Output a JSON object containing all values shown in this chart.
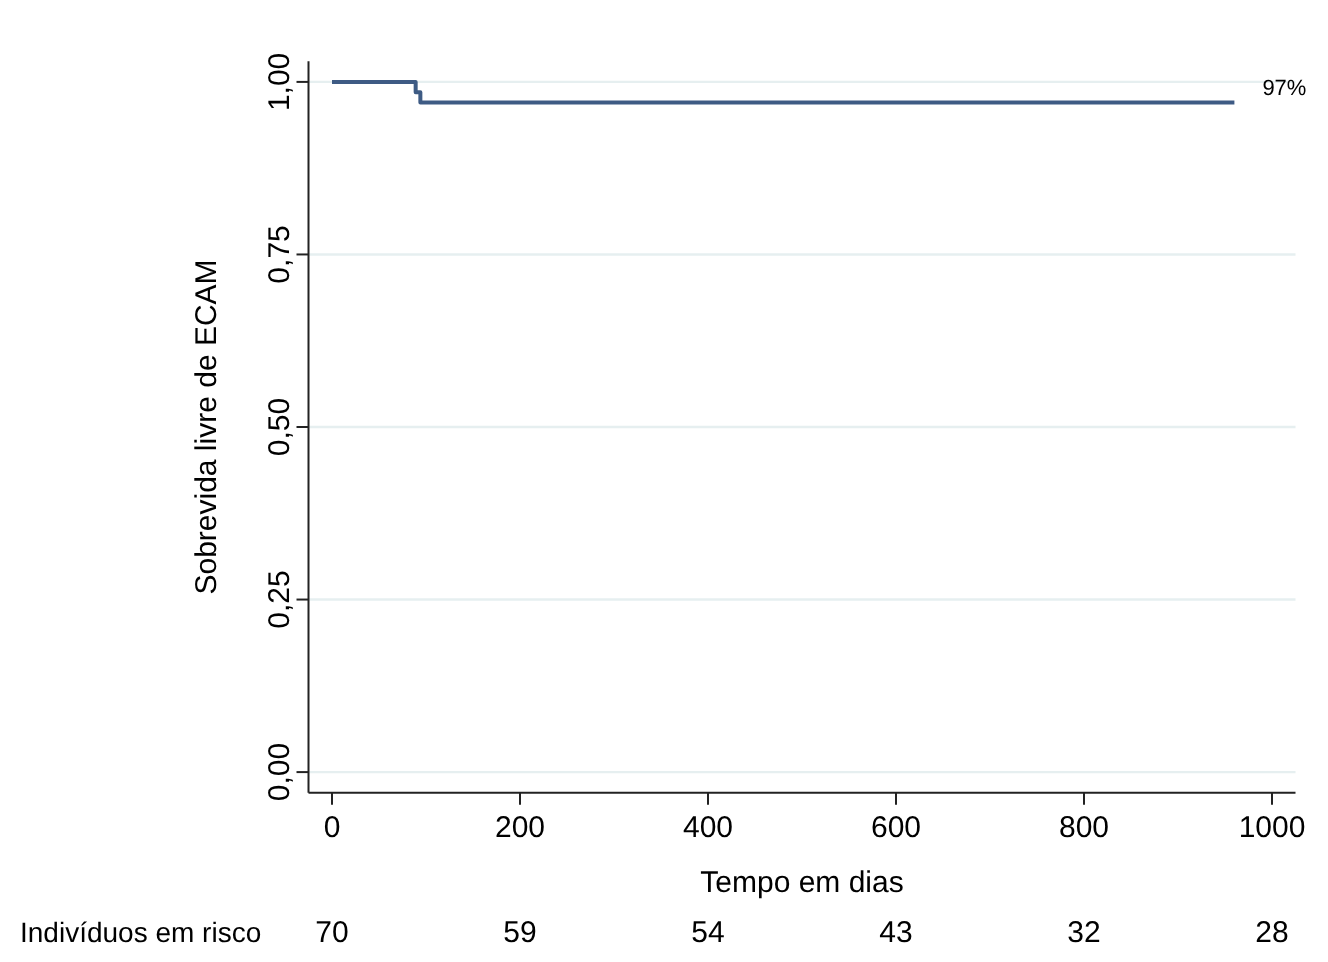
{
  "chart_data": {
    "type": "step",
    "xlabel": "Tempo em dias",
    "ylabel": "Sobrevida livre de ECAM",
    "xlim": [
      -25,
      1025
    ],
    "xticks": [
      0,
      200,
      400,
      600,
      800,
      1000
    ],
    "ylim": [
      -0.03,
      1.03
    ],
    "yticks": [
      {
        "value": 0,
        "label": "0,00"
      },
      {
        "value": 0.25,
        "label": "0,25"
      },
      {
        "value": 0.5,
        "label": "0,50"
      },
      {
        "value": 0.75,
        "label": "0,75"
      },
      {
        "value": 1,
        "label": "1,00"
      }
    ],
    "grid": "y",
    "series": [
      {
        "color": "#3e5b84",
        "x": [
          0,
          89,
          94,
          960
        ],
        "values": [
          1,
          0.985,
          0.97,
          0.97
        ]
      }
    ],
    "annotations": [
      {
        "text": "97%",
        "x": 960,
        "y": 0.97
      },
      "Indivíduos em risco",
      "70",
      "59",
      "54",
      "43",
      "32",
      "28"
    ]
  }
}
